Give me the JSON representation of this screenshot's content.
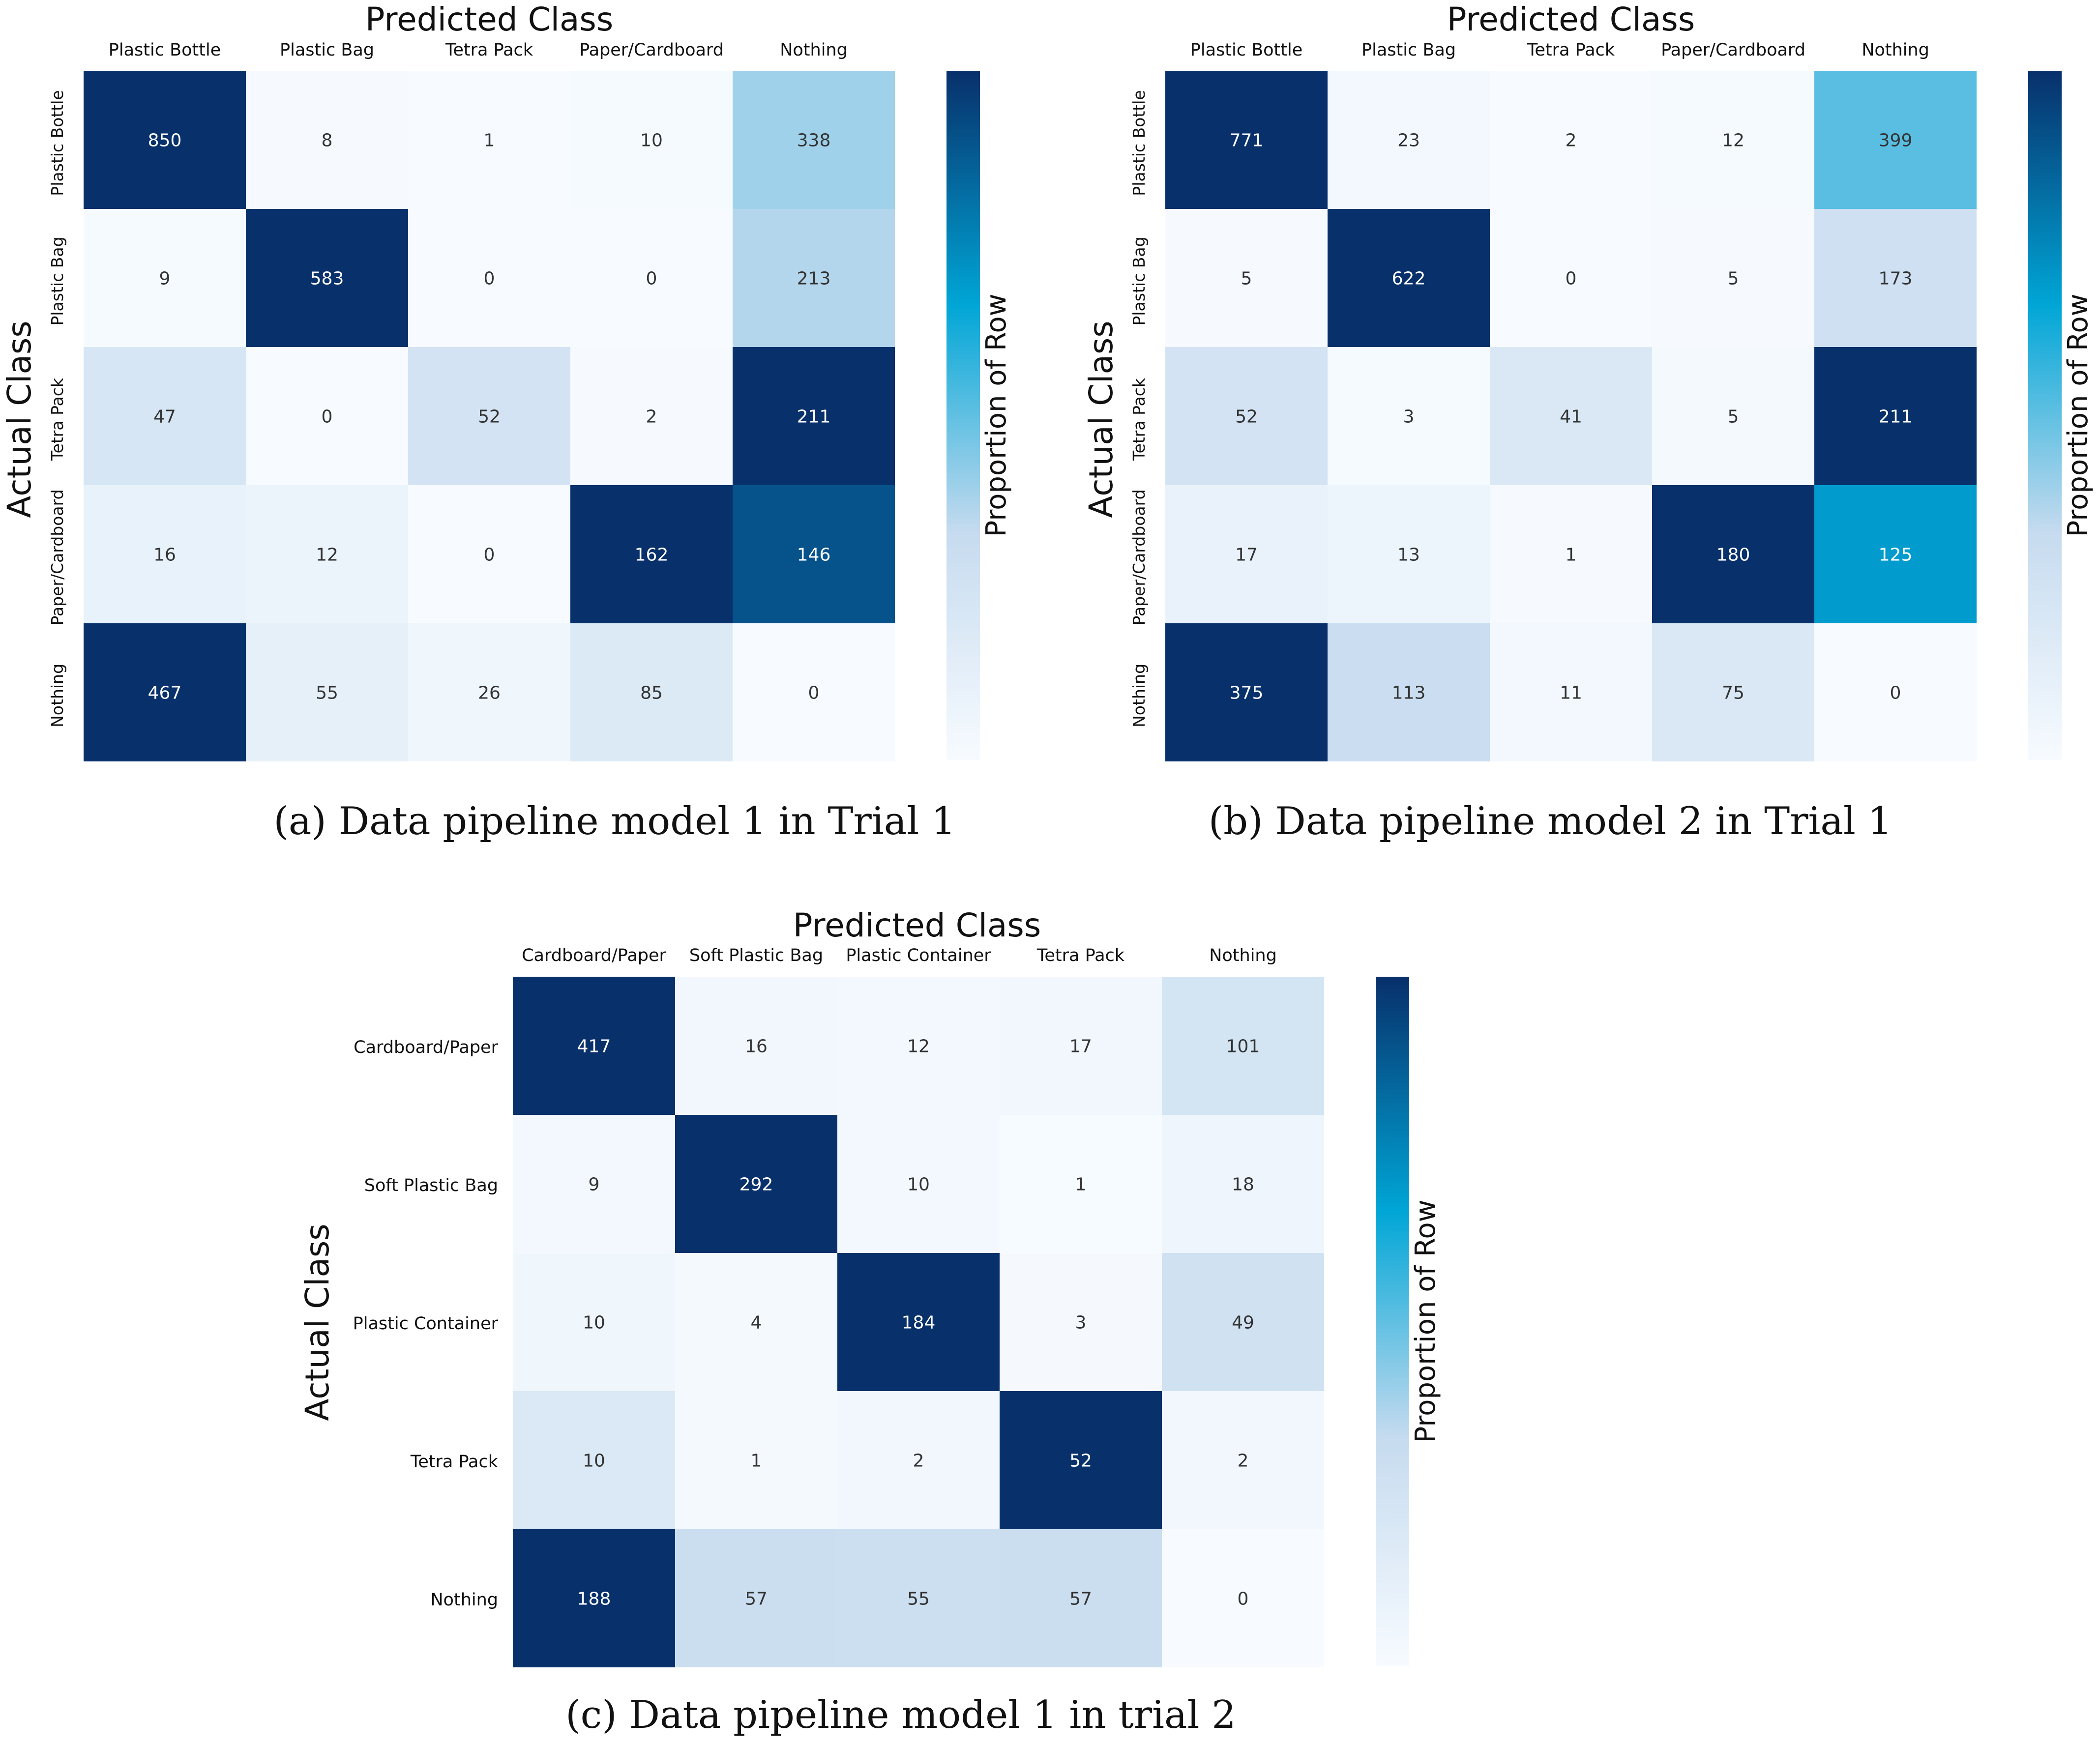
{
  "chart_data": [
    {
      "type": "heatmap",
      "title": "Predicted Class",
      "xlabel": "Predicted Class",
      "ylabel": "Actual Class",
      "colorbar_label": "Proportion of Row",
      "caption": "(a)  Data pipeline model 1 in Trial 1",
      "columns": [
        "Plastic Bottle",
        "Plastic Bag",
        "Tetra Pack",
        "Paper/Cardboard",
        "Nothing"
      ],
      "rows": [
        "Plastic Bottle",
        "Plastic Bag",
        "Tetra Pack",
        "Paper/Cardboard",
        "Nothing"
      ],
      "values": [
        [
          850,
          8,
          1,
          10,
          338
        ],
        [
          9,
          583,
          0,
          0,
          213
        ],
        [
          47,
          0,
          52,
          2,
          211
        ],
        [
          16,
          12,
          0,
          162,
          146
        ],
        [
          467,
          55,
          26,
          85,
          0
        ]
      ],
      "row_label_style": "rotated",
      "colormap": [
        "#f7fbff",
        "#c6dbef",
        "#00a6d6",
        "#08306b"
      ]
    },
    {
      "type": "heatmap",
      "title": "Predicted Class",
      "xlabel": "Predicted Class",
      "ylabel": "Actual Class",
      "colorbar_label": "Proportion of Row",
      "caption": "(b) Data pipeline model 2 in Trial 1",
      "columns": [
        "Plastic Bottle",
        "Plastic Bag",
        "Tetra Pack",
        "Paper/Cardboard",
        "Nothing"
      ],
      "rows": [
        "Plastic Bottle",
        "Plastic Bag",
        "Tetra Pack",
        "Paper/Cardboard",
        "Nothing"
      ],
      "values": [
        [
          771,
          23,
          2,
          12,
          399
        ],
        [
          5,
          622,
          0,
          5,
          173
        ],
        [
          52,
          3,
          41,
          5,
          211
        ],
        [
          17,
          13,
          1,
          180,
          125
        ],
        [
          375,
          113,
          11,
          75,
          0
        ]
      ],
      "row_label_style": "rotated",
      "colormap": [
        "#f7fbff",
        "#c6dbef",
        "#00a6d6",
        "#08306b"
      ]
    },
    {
      "type": "heatmap",
      "title": "Predicted Class",
      "xlabel": "Predicted Class",
      "ylabel": "Actual Class",
      "colorbar_label": "Proportion of Row",
      "caption": "(c) Data pipeline model 1 in trial 2",
      "columns": [
        "Cardboard/Paper",
        "Soft Plastic Bag",
        "Plastic Container",
        "Tetra Pack",
        "Nothing"
      ],
      "rows": [
        "Cardboard/Paper",
        "Soft Plastic Bag",
        "Plastic Container",
        "Tetra Pack",
        "Nothing"
      ],
      "values": [
        [
          417,
          16,
          12,
          17,
          101
        ],
        [
          9,
          292,
          10,
          1,
          18
        ],
        [
          10,
          4,
          184,
          3,
          49
        ],
        [
          10,
          1,
          2,
          52,
          2
        ],
        [
          188,
          57,
          55,
          57,
          0
        ]
      ],
      "row_label_style": "horizontal",
      "colormap": [
        "#f7fbff",
        "#c6dbef",
        "#00a6d6",
        "#08306b"
      ]
    }
  ]
}
